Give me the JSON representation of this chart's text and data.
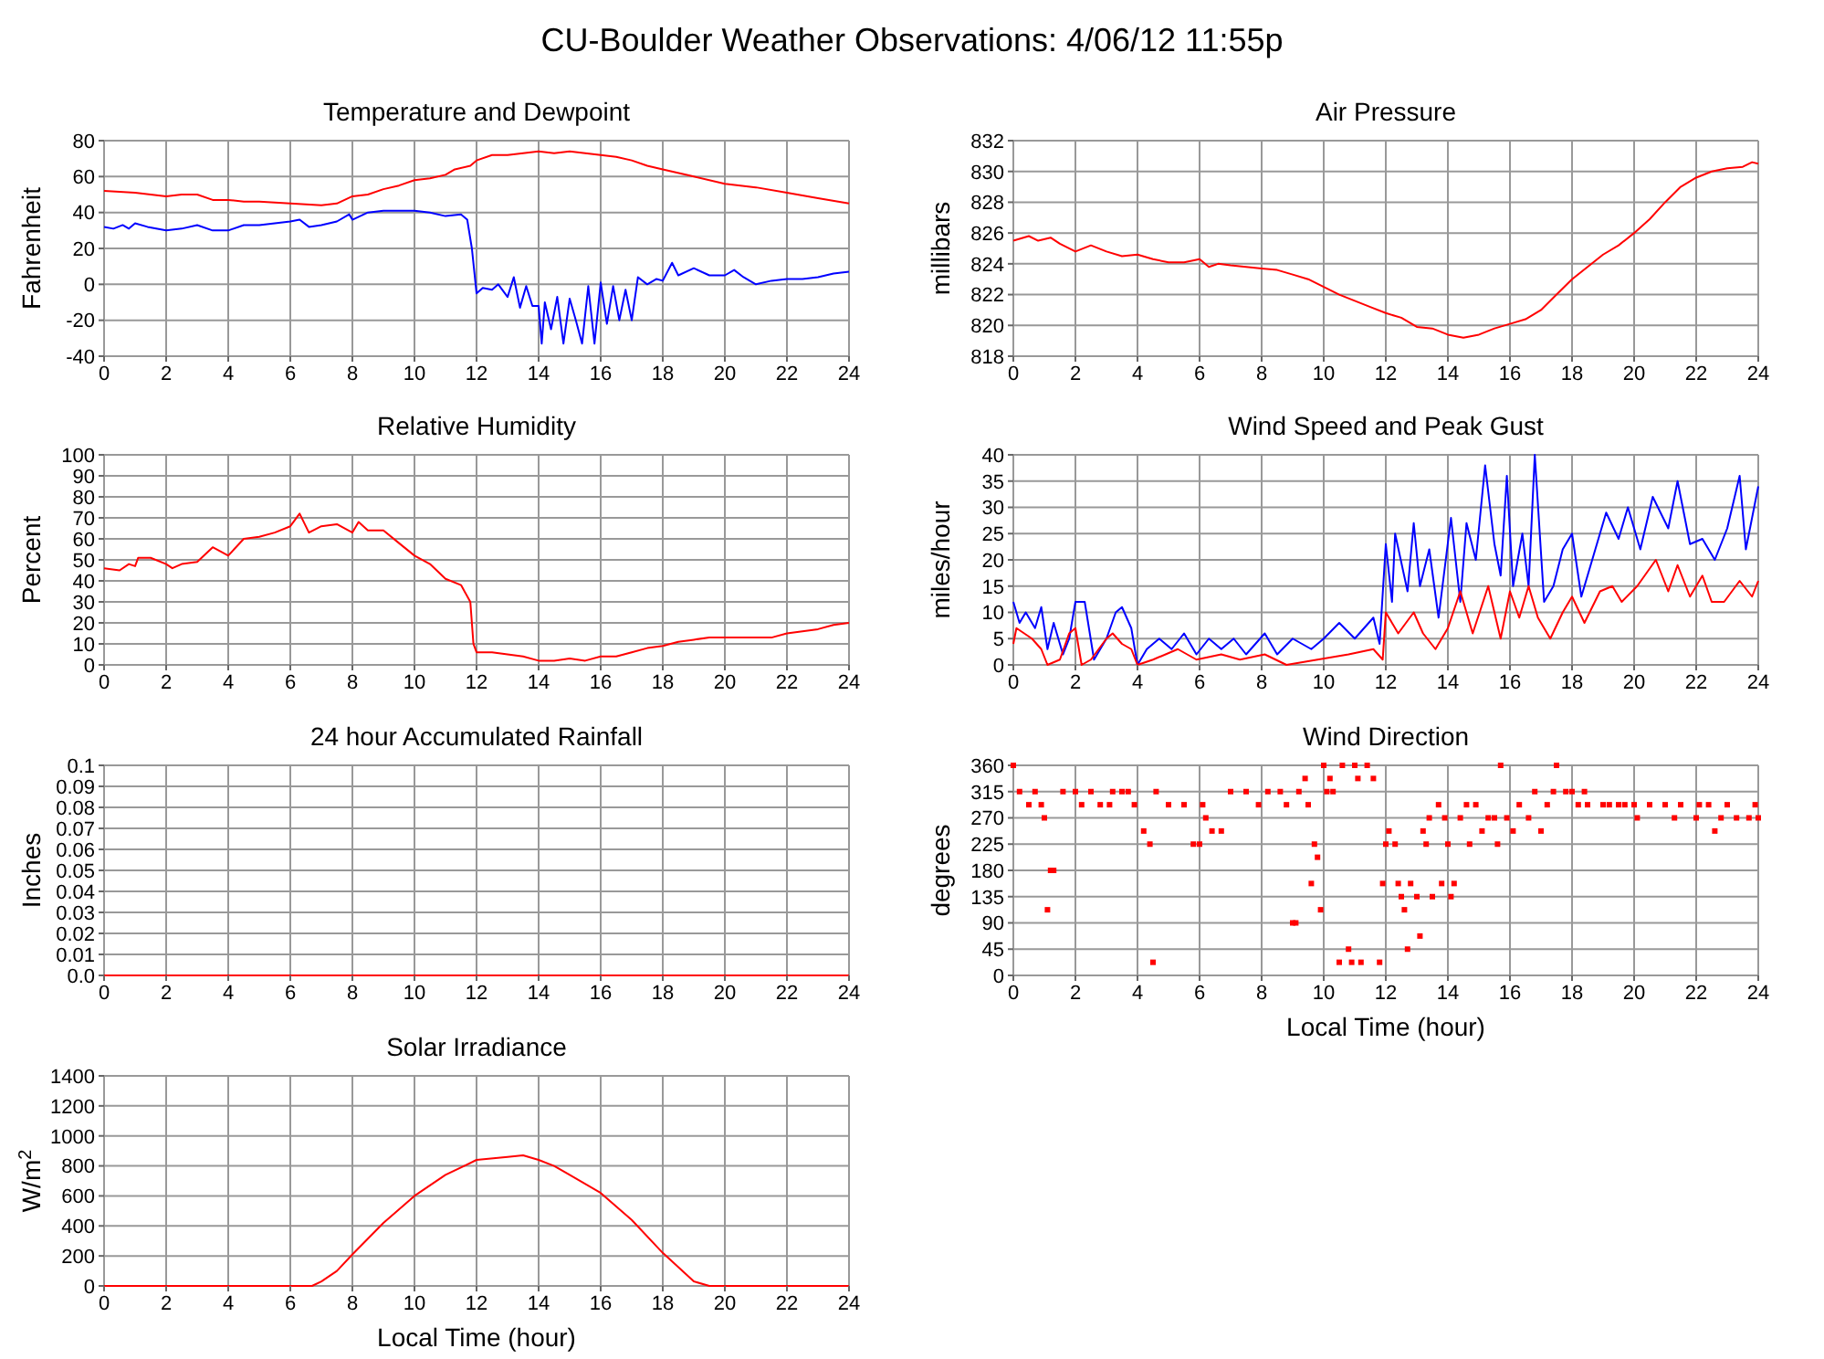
{
  "chart_data": [
    {
      "type": "other",
      "title": "CU-Boulder Weather Observations: 4/06/12 11:55p"
    },
    {
      "type": "line",
      "title": "Temperature and Dewpoint",
      "ylabel": "Fahrenheit",
      "xlim": [
        0,
        24
      ],
      "xticks": [
        0,
        2,
        4,
        6,
        8,
        10,
        12,
        14,
        16,
        18,
        20,
        22,
        24
      ],
      "ylim": [
        -40,
        80
      ],
      "yticks": [
        -40,
        -20,
        0,
        20,
        40,
        60,
        80
      ],
      "grid": true,
      "series": [
        {
          "color": "#ff0000",
          "x": [
            0,
            1,
            2,
            2.5,
            3,
            3.5,
            4,
            4.5,
            5,
            6,
            7,
            7.5,
            8,
            8.5,
            9,
            9.5,
            10,
            10.5,
            11,
            11.3,
            11.8,
            12,
            12.5,
            13,
            13.5,
            14,
            14.5,
            15,
            15.5,
            16,
            16.5,
            17,
            17.5,
            18,
            19,
            20,
            21,
            22,
            23,
            24
          ],
          "values": [
            52,
            51,
            49,
            50,
            50,
            47,
            47,
            46,
            46,
            45,
            44,
            45,
            49,
            50,
            53,
            55,
            58,
            59,
            61,
            64,
            66,
            69,
            72,
            72,
            73,
            74,
            73,
            74,
            73,
            72,
            71,
            69,
            66,
            64,
            60,
            56,
            54,
            51,
            48,
            45
          ]
        },
        {
          "color": "#0000ff",
          "x": [
            0,
            0.3,
            0.6,
            0.8,
            1,
            1.4,
            2,
            2.5,
            3,
            3.5,
            4,
            4.5,
            5,
            5.5,
            6,
            6.3,
            6.6,
            7,
            7.5,
            7.9,
            8,
            8.5,
            9,
            10,
            10.5,
            11,
            11.5,
            11.7,
            11.85,
            12,
            12.2,
            12.5,
            12.7,
            13,
            13.2,
            13.4,
            13.6,
            13.8,
            14,
            14.1,
            14.2,
            14.4,
            14.6,
            14.8,
            15,
            15.2,
            15.4,
            15.6,
            15.8,
            16,
            16.2,
            16.4,
            16.6,
            16.8,
            17,
            17.2,
            17.5,
            17.8,
            18,
            18.3,
            18.5,
            19,
            19.5,
            20,
            20.3,
            20.6,
            21,
            21.5,
            22,
            22.5,
            23,
            23.5,
            24
          ],
          "values": [
            32,
            31,
            33,
            31,
            34,
            32,
            30,
            31,
            33,
            30,
            30,
            33,
            33,
            34,
            35,
            36,
            32,
            33,
            35,
            39,
            36,
            40,
            41,
            41,
            40,
            38,
            39,
            36,
            20,
            -5,
            -2,
            -3,
            0,
            -7,
            4,
            -13,
            -1,
            -12,
            -12,
            -33,
            -10,
            -25,
            -7,
            -33,
            -8,
            -20,
            -33,
            -1,
            -33,
            1,
            -22,
            -1,
            -20,
            -3,
            -20,
            4,
            0,
            3,
            2,
            12,
            5,
            9,
            5,
            5,
            8,
            4,
            0,
            2,
            3,
            3,
            4,
            6,
            7
          ]
        }
      ]
    },
    {
      "type": "line",
      "title": "Air Pressure",
      "ylabel": "millibars",
      "xlim": [
        0,
        24
      ],
      "xticks": [
        0,
        2,
        4,
        6,
        8,
        10,
        12,
        14,
        16,
        18,
        20,
        22,
        24
      ],
      "ylim": [
        818,
        832
      ],
      "yticks": [
        818,
        820,
        822,
        824,
        826,
        828,
        830,
        832
      ],
      "grid": true,
      "series": [
        {
          "color": "#ff0000",
          "x": [
            0,
            0.5,
            0.8,
            1.2,
            1.5,
            2,
            2.5,
            3,
            3.5,
            4,
            4.5,
            5,
            5.5,
            6,
            6.3,
            6.6,
            7,
            8,
            8.5,
            9,
            9.5,
            10,
            10.5,
            11,
            11.5,
            12,
            12.5,
            13,
            13.5,
            14,
            14.5,
            15,
            15.5,
            16,
            16.5,
            17,
            17.5,
            18,
            18.5,
            19,
            19.5,
            20,
            20.5,
            21,
            21.5,
            22,
            22.5,
            23,
            23.5,
            23.8,
            24
          ],
          "values": [
            825.5,
            825.8,
            825.5,
            825.7,
            825.3,
            824.8,
            825.2,
            824.8,
            824.5,
            824.6,
            824.3,
            824.1,
            824.1,
            824.3,
            823.8,
            824,
            823.9,
            823.7,
            823.6,
            823.3,
            823,
            822.5,
            822,
            821.6,
            821.2,
            820.8,
            820.5,
            819.9,
            819.8,
            819.4,
            819.2,
            819.4,
            819.8,
            820.1,
            820.4,
            821,
            822,
            823,
            823.8,
            824.6,
            825.2,
            826,
            826.9,
            828,
            829,
            829.6,
            830,
            830.2,
            830.3,
            830.6,
            830.5
          ]
        }
      ]
    },
    {
      "type": "line",
      "title": "Relative Humidity",
      "ylabel": "Percent",
      "xlim": [
        0,
        24
      ],
      "xticks": [
        0,
        2,
        4,
        6,
        8,
        10,
        12,
        14,
        16,
        18,
        20,
        22,
        24
      ],
      "ylim": [
        0,
        100
      ],
      "yticks": [
        0,
        10,
        20,
        30,
        40,
        50,
        60,
        70,
        80,
        90,
        100
      ],
      "grid": true,
      "series": [
        {
          "color": "#ff0000",
          "x": [
            0,
            0.5,
            0.8,
            1,
            1.1,
            1.5,
            2,
            2.2,
            2.5,
            3,
            3.5,
            4,
            4.5,
            5,
            5.5,
            6,
            6.3,
            6.6,
            7,
            7.5,
            8,
            8.2,
            8.5,
            9,
            9.5,
            10,
            10.5,
            11,
            11.5,
            11.8,
            11.9,
            12,
            12.5,
            13,
            13.5,
            14,
            14.5,
            15,
            15.5,
            16,
            16.5,
            17,
            17.5,
            18,
            18.5,
            19,
            19.5,
            20,
            20.5,
            21,
            21.5,
            22,
            22.5,
            23,
            23.5,
            24
          ],
          "values": [
            46,
            45,
            48,
            47,
            51,
            51,
            48,
            46,
            48,
            49,
            56,
            52,
            60,
            61,
            63,
            66,
            72,
            63,
            66,
            67,
            63,
            68,
            64,
            64,
            58,
            52,
            48,
            41,
            38,
            30,
            10,
            6,
            6,
            5,
            4,
            2,
            2,
            3,
            2,
            4,
            4,
            6,
            8,
            9,
            11,
            12,
            13,
            13,
            13,
            13,
            13,
            15,
            16,
            17,
            19,
            20
          ]
        }
      ]
    },
    {
      "type": "line",
      "title": "Wind Speed and Peak Gust",
      "ylabel": "miles/hour",
      "xlim": [
        0,
        24
      ],
      "xticks": [
        0,
        2,
        4,
        6,
        8,
        10,
        12,
        14,
        16,
        18,
        20,
        22,
        24
      ],
      "ylim": [
        0,
        40
      ],
      "yticks": [
        0,
        5,
        10,
        15,
        20,
        25,
        30,
        35,
        40
      ],
      "grid": true,
      "series": [
        {
          "color": "#0000ff",
          "x": [
            0,
            0.2,
            0.4,
            0.7,
            0.9,
            1.1,
            1.3,
            1.6,
            1.8,
            2,
            2.3,
            2.6,
            3,
            3.3,
            3.5,
            3.8,
            4,
            4.3,
            4.7,
            5.1,
            5.5,
            5.9,
            6.3,
            6.7,
            7.1,
            7.5,
            8.1,
            8.5,
            9,
            9.6,
            10,
            10.5,
            11,
            11.6,
            11.8,
            12,
            12.2,
            12.3,
            12.7,
            12.9,
            13.1,
            13.4,
            13.7,
            14.1,
            14.4,
            14.6,
            14.9,
            15.2,
            15.5,
            15.7,
            15.9,
            16.1,
            16.4,
            16.6,
            16.8,
            17.1,
            17.4,
            17.7,
            18,
            18.3,
            18.7,
            19.1,
            19.5,
            19.8,
            20.2,
            20.6,
            21.1,
            21.4,
            21.8,
            22.2,
            22.6,
            23,
            23.4,
            23.6,
            23.8,
            24
          ],
          "values": [
            12,
            8,
            10,
            7,
            11,
            3,
            8,
            2,
            5,
            12,
            12,
            1,
            5,
            10,
            11,
            7,
            0,
            3,
            5,
            3,
            6,
            2,
            5,
            3,
            5,
            2,
            6,
            2,
            5,
            3,
            5,
            8,
            5,
            9,
            4,
            23,
            12,
            25,
            14,
            27,
            15,
            22,
            9,
            28,
            12,
            27,
            20,
            38,
            23,
            17,
            36,
            15,
            25,
            15,
            40,
            12,
            15,
            22,
            25,
            13,
            21,
            29,
            24,
            30,
            22,
            32,
            26,
            35,
            23,
            24,
            20,
            26,
            36,
            22,
            28,
            34
          ]
        },
        {
          "color": "#ff0000",
          "x": [
            0,
            0.1,
            0.6,
            0.9,
            1.1,
            1.5,
            1.8,
            2,
            2.2,
            2.5,
            3,
            3.2,
            3.5,
            3.8,
            4,
            4.5,
            5.3,
            5.9,
            6.7,
            7.3,
            8.1,
            8.8,
            9.8,
            10.8,
            11.6,
            11.9,
            12,
            12.4,
            12.9,
            13.2,
            13.6,
            14,
            14.4,
            14.8,
            15.3,
            15.7,
            16,
            16.3,
            16.6,
            16.9,
            17.3,
            17.7,
            18,
            18.4,
            18.9,
            19.3,
            19.6,
            20.1,
            20.7,
            21.1,
            21.4,
            21.8,
            22.2,
            22.5,
            22.9,
            23.4,
            23.8,
            24
          ],
          "values": [
            4,
            7,
            5,
            3,
            0,
            1,
            6,
            7,
            0,
            1,
            5,
            6,
            4,
            3,
            0,
            1,
            3,
            1,
            2,
            1,
            2,
            0,
            1,
            2,
            3,
            1,
            10,
            6,
            10,
            6,
            3,
            7,
            14,
            6,
            15,
            5,
            14,
            9,
            15,
            9,
            5,
            10,
            13,
            8,
            14,
            15,
            12,
            15,
            20,
            14,
            19,
            13,
            17,
            12,
            12,
            16,
            13,
            16
          ]
        }
      ]
    },
    {
      "type": "line",
      "title": "24 hour Accumulated Rainfall",
      "ylabel": "Inches",
      "xlim": [
        0,
        24
      ],
      "xticks": [
        0,
        2,
        4,
        6,
        8,
        10,
        12,
        14,
        16,
        18,
        20,
        22,
        24
      ],
      "ylim": [
        0,
        0.1
      ],
      "yticks": [
        {
          "value": 0,
          "label": "0.0"
        },
        0.01,
        0.02,
        0.03,
        0.04,
        0.05,
        0.06,
        0.07,
        0.08,
        0.09,
        0.1
      ],
      "grid": true,
      "series": [
        {
          "color": "#ff0000",
          "x": [
            0,
            24
          ],
          "values": [
            0,
            0
          ]
        }
      ]
    },
    {
      "type": "scatter",
      "title": "Wind Direction",
      "ylabel": "degrees",
      "xlabel": "Local Time (hour)",
      "xlim": [
        0,
        24
      ],
      "xticks": [
        0,
        2,
        4,
        6,
        8,
        10,
        12,
        14,
        16,
        18,
        20,
        22,
        24
      ],
      "ylim": [
        0,
        360
      ],
      "yticks": [
        0,
        45,
        90,
        135,
        180,
        225,
        270,
        315,
        360
      ],
      "grid": true,
      "marker": "square",
      "series": [
        {
          "color": "#ff0000",
          "x": [
            0,
            0.2,
            0.5,
            0.7,
            0.9,
            1.0,
            1.1,
            1.2,
            1.3,
            1.6,
            2.0,
            2.2,
            2.5,
            2.8,
            3.1,
            3.2,
            3.5,
            3.7,
            3.9,
            4.2,
            4.4,
            4.5,
            4.6,
            5.0,
            5.5,
            5.8,
            6.0,
            6.1,
            6.2,
            6.4,
            6.7,
            7.0,
            7.5,
            7.9,
            8.2,
            8.6,
            8.8,
            9.0,
            9.1,
            9.2,
            9.4,
            9.5,
            9.6,
            9.7,
            9.8,
            9.9,
            10.0,
            10.1,
            10.2,
            10.3,
            10.5,
            10.6,
            10.8,
            10.9,
            11.0,
            11.1,
            11.2,
            11.4,
            11.6,
            11.8,
            11.9,
            12.0,
            12.1,
            12.3,
            12.4,
            12.5,
            12.6,
            12.7,
            12.8,
            13.0,
            13.1,
            13.2,
            13.3,
            13.4,
            13.5,
            13.7,
            13.8,
            13.9,
            14.0,
            14.1,
            14.2,
            14.4,
            14.6,
            14.7,
            14.9,
            15.1,
            15.3,
            15.5,
            15.6,
            15.7,
            15.9,
            16.1,
            16.3,
            16.6,
            16.8,
            17.0,
            17.2,
            17.4,
            17.5,
            17.8,
            18.0,
            18.2,
            18.4,
            18.5,
            19.0,
            19.2,
            19.5,
            19.7,
            20.0,
            20.1,
            20.5,
            21.0,
            21.3,
            21.5,
            22.0,
            22.1,
            22.4,
            22.6,
            22.8,
            23.0,
            23.3,
            23.7,
            23.9,
            24.0
          ],
          "values": [
            360,
            315,
            292.5,
            315,
            292.5,
            270,
            112.5,
            180,
            180,
            315,
            315,
            292.5,
            315,
            292.5,
            292.5,
            315,
            315,
            315,
            292.5,
            247.5,
            225,
            22.5,
            315,
            292.5,
            292.5,
            225,
            225,
            292.5,
            270,
            247.5,
            247.5,
            315,
            315,
            292.5,
            315,
            315,
            292.5,
            90,
            90,
            315,
            337.5,
            292.5,
            157.5,
            225,
            202.5,
            112.5,
            360,
            315,
            337.5,
            315,
            22.5,
            360,
            45,
            22.5,
            360,
            337.5,
            22.5,
            360,
            337.5,
            22.5,
            157.5,
            225,
            247.5,
            225,
            157.5,
            135,
            112.5,
            45,
            157.5,
            135,
            67.5,
            247.5,
            225,
            270,
            135,
            292.5,
            157.5,
            270,
            225,
            135,
            157.5,
            270,
            292.5,
            225,
            292.5,
            247.5,
            270,
            270,
            225,
            360,
            270,
            247.5,
            292.5,
            270,
            315,
            247.5,
            292.5,
            315,
            360,
            315,
            315,
            292.5,
            315,
            292.5,
            292.5,
            292.5,
            292.5,
            292.5,
            292.5,
            270,
            292.5,
            292.5,
            270,
            292.5,
            270,
            292.5,
            292.5,
            247.5,
            270,
            292.5,
            270,
            270,
            292.5,
            270
          ]
        }
      ]
    },
    {
      "type": "line",
      "title": "Solar Irradiance",
      "ylabel": "W/m$^{2}$",
      "xlabel": "Local Time (hour)",
      "xlim": [
        0,
        24
      ],
      "xticks": [
        0,
        2,
        4,
        6,
        8,
        10,
        12,
        14,
        16,
        18,
        20,
        22,
        24
      ],
      "ylim": [
        0,
        1400
      ],
      "yticks": [
        0,
        200,
        400,
        600,
        800,
        1000,
        1200,
        1400
      ],
      "grid": true,
      "series": [
        {
          "color": "#ff0000",
          "x": [
            0,
            6.7,
            7,
            7.5,
            8,
            9,
            10,
            11,
            12,
            13,
            13.5,
            14,
            14.5,
            15,
            16,
            17,
            18,
            19,
            19.5,
            24
          ],
          "values": [
            0,
            0,
            30,
            100,
            210,
            420,
            600,
            740,
            840,
            860,
            870,
            840,
            800,
            740,
            620,
            440,
            220,
            30,
            0,
            0
          ]
        }
      ]
    }
  ]
}
